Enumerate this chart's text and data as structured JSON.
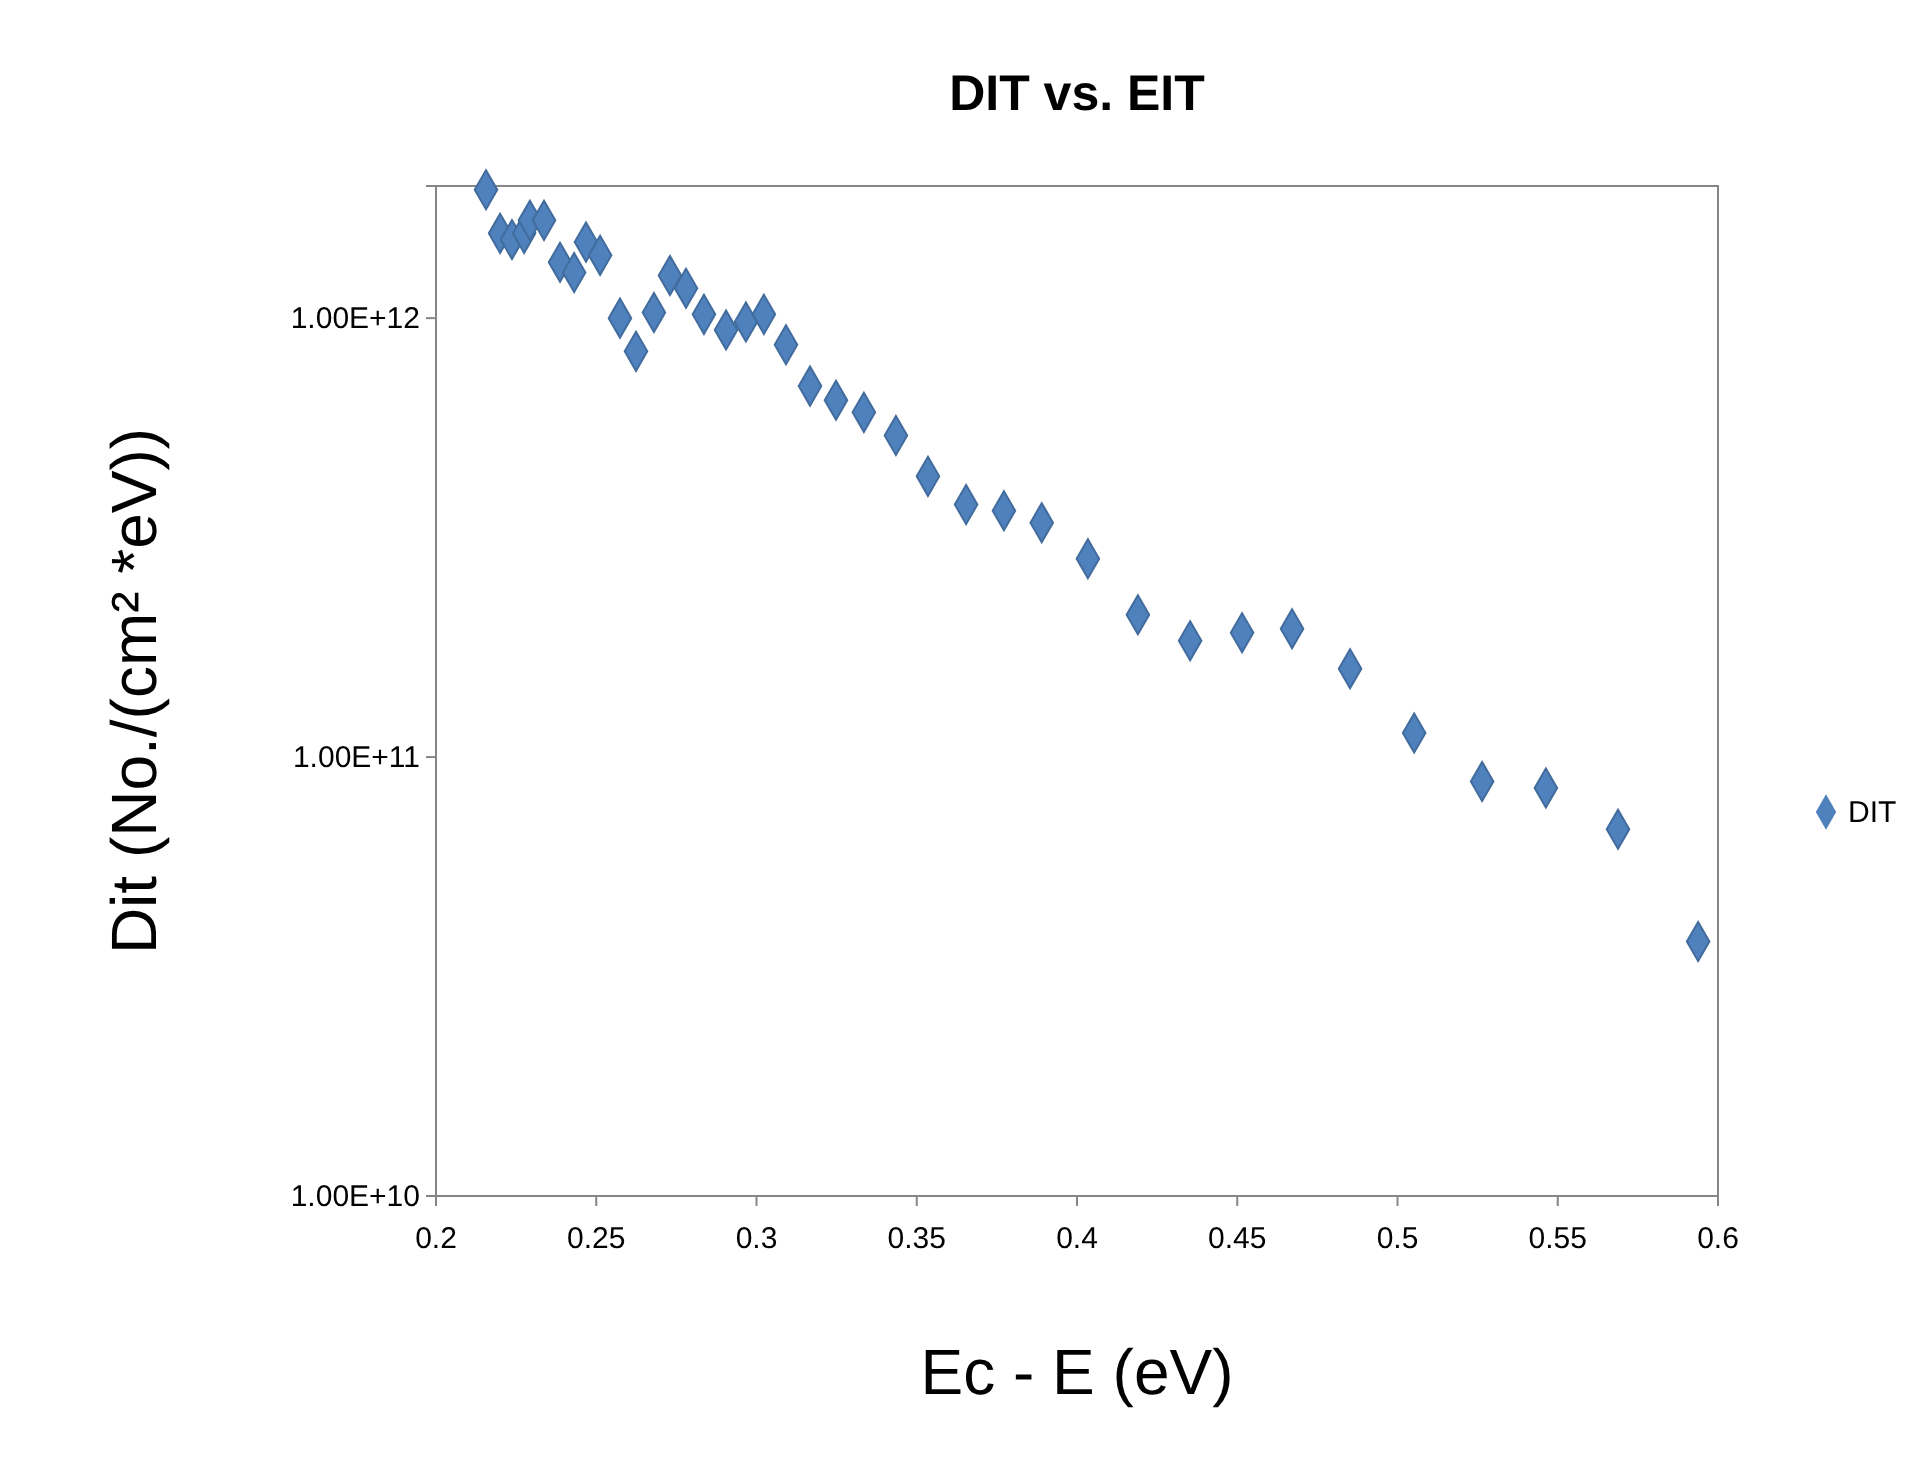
{
  "chart_data": {
    "type": "scatter",
    "title": "DIT vs. EIT",
    "xlabel": "Ec - E (eV)",
    "ylabel": "Dit (No./(cm² *eV))",
    "log": "y",
    "grid": false,
    "legend": "right",
    "marker": "diamond",
    "xlim": [
      0.2,
      0.6
    ],
    "xticks": [
      0.2,
      0.25,
      0.3,
      0.35,
      0.4,
      0.45,
      0.5,
      0.55,
      0.6
    ],
    "ylim": [
      10000000000.0,
      2000000000000.0
    ],
    "yticks": [
      {
        "value": 10000000000.0,
        "label": "1.00E+10"
      },
      {
        "value": 100000000000.0,
        "label": "1.00E+11"
      },
      {
        "value": 1000000000000.0,
        "label": "1.00E+12"
      }
    ],
    "series": [
      {
        "name": "DIT",
        "color": "#4f81bd",
        "x": [
          0.2156,
          0.22,
          0.2237,
          0.2275,
          0.2293,
          0.2337,
          0.2387,
          0.2431,
          0.2468,
          0.2512,
          0.2574,
          0.2624,
          0.268,
          0.273,
          0.278,
          0.2836,
          0.2905,
          0.2967,
          0.3023,
          0.3092,
          0.3167,
          0.3248,
          0.3335,
          0.3435,
          0.3535,
          0.3654,
          0.3772,
          0.389,
          0.4034,
          0.419,
          0.4353,
          0.4515,
          0.4671,
          0.4852,
          0.5052,
          0.5264,
          0.5463,
          0.5688,
          0.5938
        ],
        "values": [
          1960000000000.0,
          1560000000000.0,
          1510000000000.0,
          1560000000000.0,
          1670000000000.0,
          1670000000000.0,
          1340000000000.0,
          1270000000000.0,
          1490000000000.0,
          1390000000000.0,
          1000000000000.0,
          840000000000.0,
          1030000000000.0,
          1250000000000.0,
          1170000000000.0,
          1020000000000.0,
          940000000000.0,
          980000000000.0,
          1020000000000.0,
          870000000000.0,
          700000000000.0,
          650000000000.0,
          610000000000.0,
          540000000000.0,
          436000000000.0,
          376000000000.0,
          364000000000.0,
          342000000000.0,
          283000000000.0,
          211000000000.0,
          184000000000.0,
          192000000000.0,
          196000000000.0,
          159000000000.0,
          113500000000.0,
          88000000000.0,
          85000000000.0,
          68500000000.0,
          38000000000.0
        ]
      }
    ]
  }
}
